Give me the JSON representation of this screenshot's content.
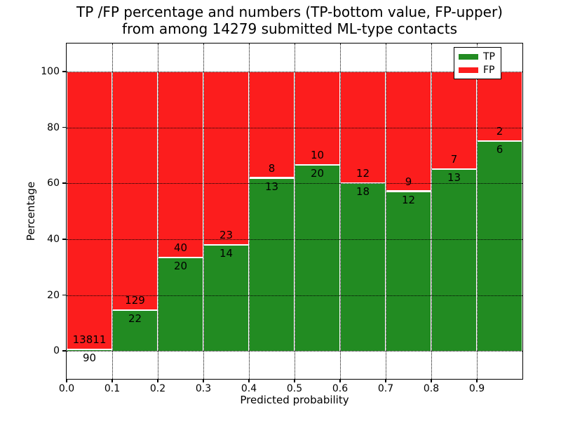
{
  "title": {
    "line1": "TP /FP percentage and numbers (TP-bottom value, FP-upper)",
    "line2": "from among 14279 submitted ML-type contacts"
  },
  "axes": {
    "xlabel": "Predicted probability",
    "ylabel": "Percentage"
  },
  "legend": {
    "position": "upper right",
    "items": [
      {
        "label": "TP",
        "color": "#228b22"
      },
      {
        "label": "FP",
        "color": "#fc1d1d"
      }
    ]
  },
  "chart_data": {
    "type": "bar",
    "stacked": true,
    "normalized": "each 0.1-wide probability bin scaled to 100%; numeric labels show raw counts (TP below the boundary, FP above it)",
    "title": "TP /FP percentage and numbers (TP-bottom value, FP-upper) from among 14279 submitted ML-type contacts",
    "xlabel": "Predicted probability",
    "ylabel": "Percentage",
    "total_contacts": 14279,
    "bin_width": 0.1,
    "categories": [
      "0.0",
      "0.1",
      "0.2",
      "0.3",
      "0.4",
      "0.5",
      "0.6",
      "0.7",
      "0.8",
      "0.9"
    ],
    "series": [
      {
        "name": "TP",
        "color": "#228b22",
        "counts": [
          90,
          22,
          20,
          14,
          13,
          20,
          18,
          12,
          13,
          6
        ]
      },
      {
        "name": "FP",
        "color": "#fc1d1d",
        "counts": [
          13811,
          129,
          40,
          23,
          8,
          10,
          12,
          9,
          7,
          2
        ]
      }
    ],
    "tp_percent": [
      0.65,
      14.57,
      33.33,
      37.84,
      61.9,
      66.67,
      60.0,
      57.14,
      65.0,
      75.0
    ],
    "xlim": [
      0.0,
      1.0
    ],
    "ylim": [
      -10,
      110
    ],
    "yticks": [
      0,
      20,
      40,
      60,
      80,
      100
    ],
    "xticks": [
      "0.0",
      "0.1",
      "0.2",
      "0.3",
      "0.4",
      "0.5",
      "0.6",
      "0.7",
      "0.8",
      "0.9"
    ],
    "grid": "dotted",
    "legend_position": "upper right"
  }
}
